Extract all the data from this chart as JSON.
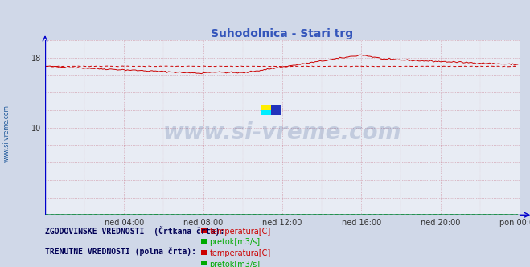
{
  "title": "Suhodolnica - Stari trg",
  "title_color": "#3355bb",
  "title_fontsize": 10,
  "bg_color": "#d0d8e8",
  "plot_bg_color": "#e8ecf4",
  "axis_color": "#0000cc",
  "grid_color": "#cc8899",
  "watermark_text": "www.si-vreme.com",
  "watermark_color": "#1a3a7a",
  "watermark_alpha": 0.18,
  "ylim": [
    0,
    20
  ],
  "yticks_shown": [
    10,
    18
  ],
  "xtick_labels": [
    "ned 04:00",
    "ned 08:00",
    "ned 12:00",
    "ned 16:00",
    "ned 20:00",
    "pon 00:00"
  ],
  "n_points": 288,
  "temp_color": "#cc0000",
  "flow_color": "#00aa00",
  "legend_title1": "ZGODOVINSKE VREDNOSTI  (Črtkana črta):",
  "legend_title2": "TRENUTNE VREDNOSTI (polna črta):",
  "legend_label_temp": "temperatura[C]",
  "legend_label_flow": "pretok[m3/s]",
  "sidebar_text": "www.si-vreme.com",
  "sidebar_color": "#1a5599"
}
